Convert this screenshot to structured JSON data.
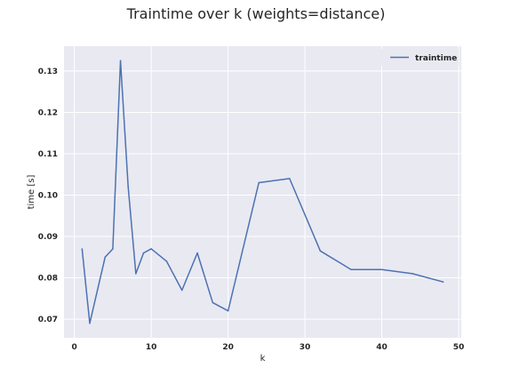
{
  "chart_data": {
    "type": "line",
    "title": "Traintime over k (weights=distance)",
    "xlabel": "k",
    "ylabel": "time [s]",
    "xlim": [
      -1.35,
      50.35
    ],
    "ylim": [
      0.0655,
      0.136
    ],
    "xticks": [
      0,
      10,
      20,
      30,
      40,
      50
    ],
    "yticks": [
      0.07,
      0.08,
      0.09,
      0.1,
      0.11,
      0.12,
      0.13
    ],
    "ytick_labels": [
      "0.07",
      "0.08",
      "0.09",
      "0.10",
      "0.11",
      "0.12",
      "0.13"
    ],
    "grid": true,
    "legend": "top-right",
    "background": "#e9e9f2",
    "series": [
      {
        "name": "traintime",
        "color": "#4c72b0",
        "x": [
          1,
          2,
          4,
          5,
          6,
          7,
          8,
          9,
          10,
          12,
          14,
          16,
          18,
          20,
          24,
          28,
          32,
          36,
          40,
          44,
          48
        ],
        "y": [
          0.087,
          0.069,
          0.085,
          0.087,
          0.1325,
          0.102,
          0.081,
          0.086,
          0.087,
          0.084,
          0.077,
          0.086,
          0.074,
          0.072,
          0.103,
          0.104,
          0.0865,
          0.082,
          0.082,
          0.081,
          0.079
        ]
      }
    ]
  }
}
